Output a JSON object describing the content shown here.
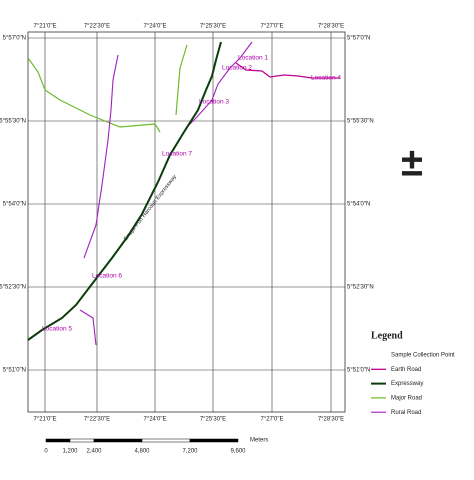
{
  "map": {
    "top_labels": [
      "7°21'0\"E",
      "7°22'30\"E",
      "7°24'0\"E",
      "7°25'30\"E",
      "7°27'0\"E",
      "7°28'30\"E"
    ],
    "bottom_labels": [
      "7°21'0\"E",
      "7°22'30\"E",
      "7°24'0\"E",
      "7°25'30\"E",
      "7°27'0\"E",
      "7°28'30\"E"
    ],
    "left_labels": [
      "5°57'0\"N",
      "5°55'30\"N",
      "5°54'0\"N",
      "5°52'30\"N",
      "5°51'0\"N"
    ],
    "right_labels": [
      "5°57'0\"N",
      "5°55'30\"N",
      "5°54'0\"N",
      "5°52'30\"N",
      "5°51'0\"N"
    ],
    "locations": [
      "Location 1",
      "Location 2",
      "Location 3",
      "Location 4",
      "Location 5",
      "Location 6",
      "Location 7"
    ],
    "road_label": "Enugu-Port Harcourt Expressway",
    "north_symbol": "±",
    "legend": {
      "title": "Legend",
      "items": [
        "Sample Collection Point",
        "Earth Road",
        "Expressway",
        "Major Road",
        "Rural Road"
      ]
    },
    "scale": {
      "labels": [
        "0",
        "1,200",
        "2,400",
        "4,800",
        "7,200",
        "9,600"
      ],
      "unit": "Meters"
    }
  }
}
